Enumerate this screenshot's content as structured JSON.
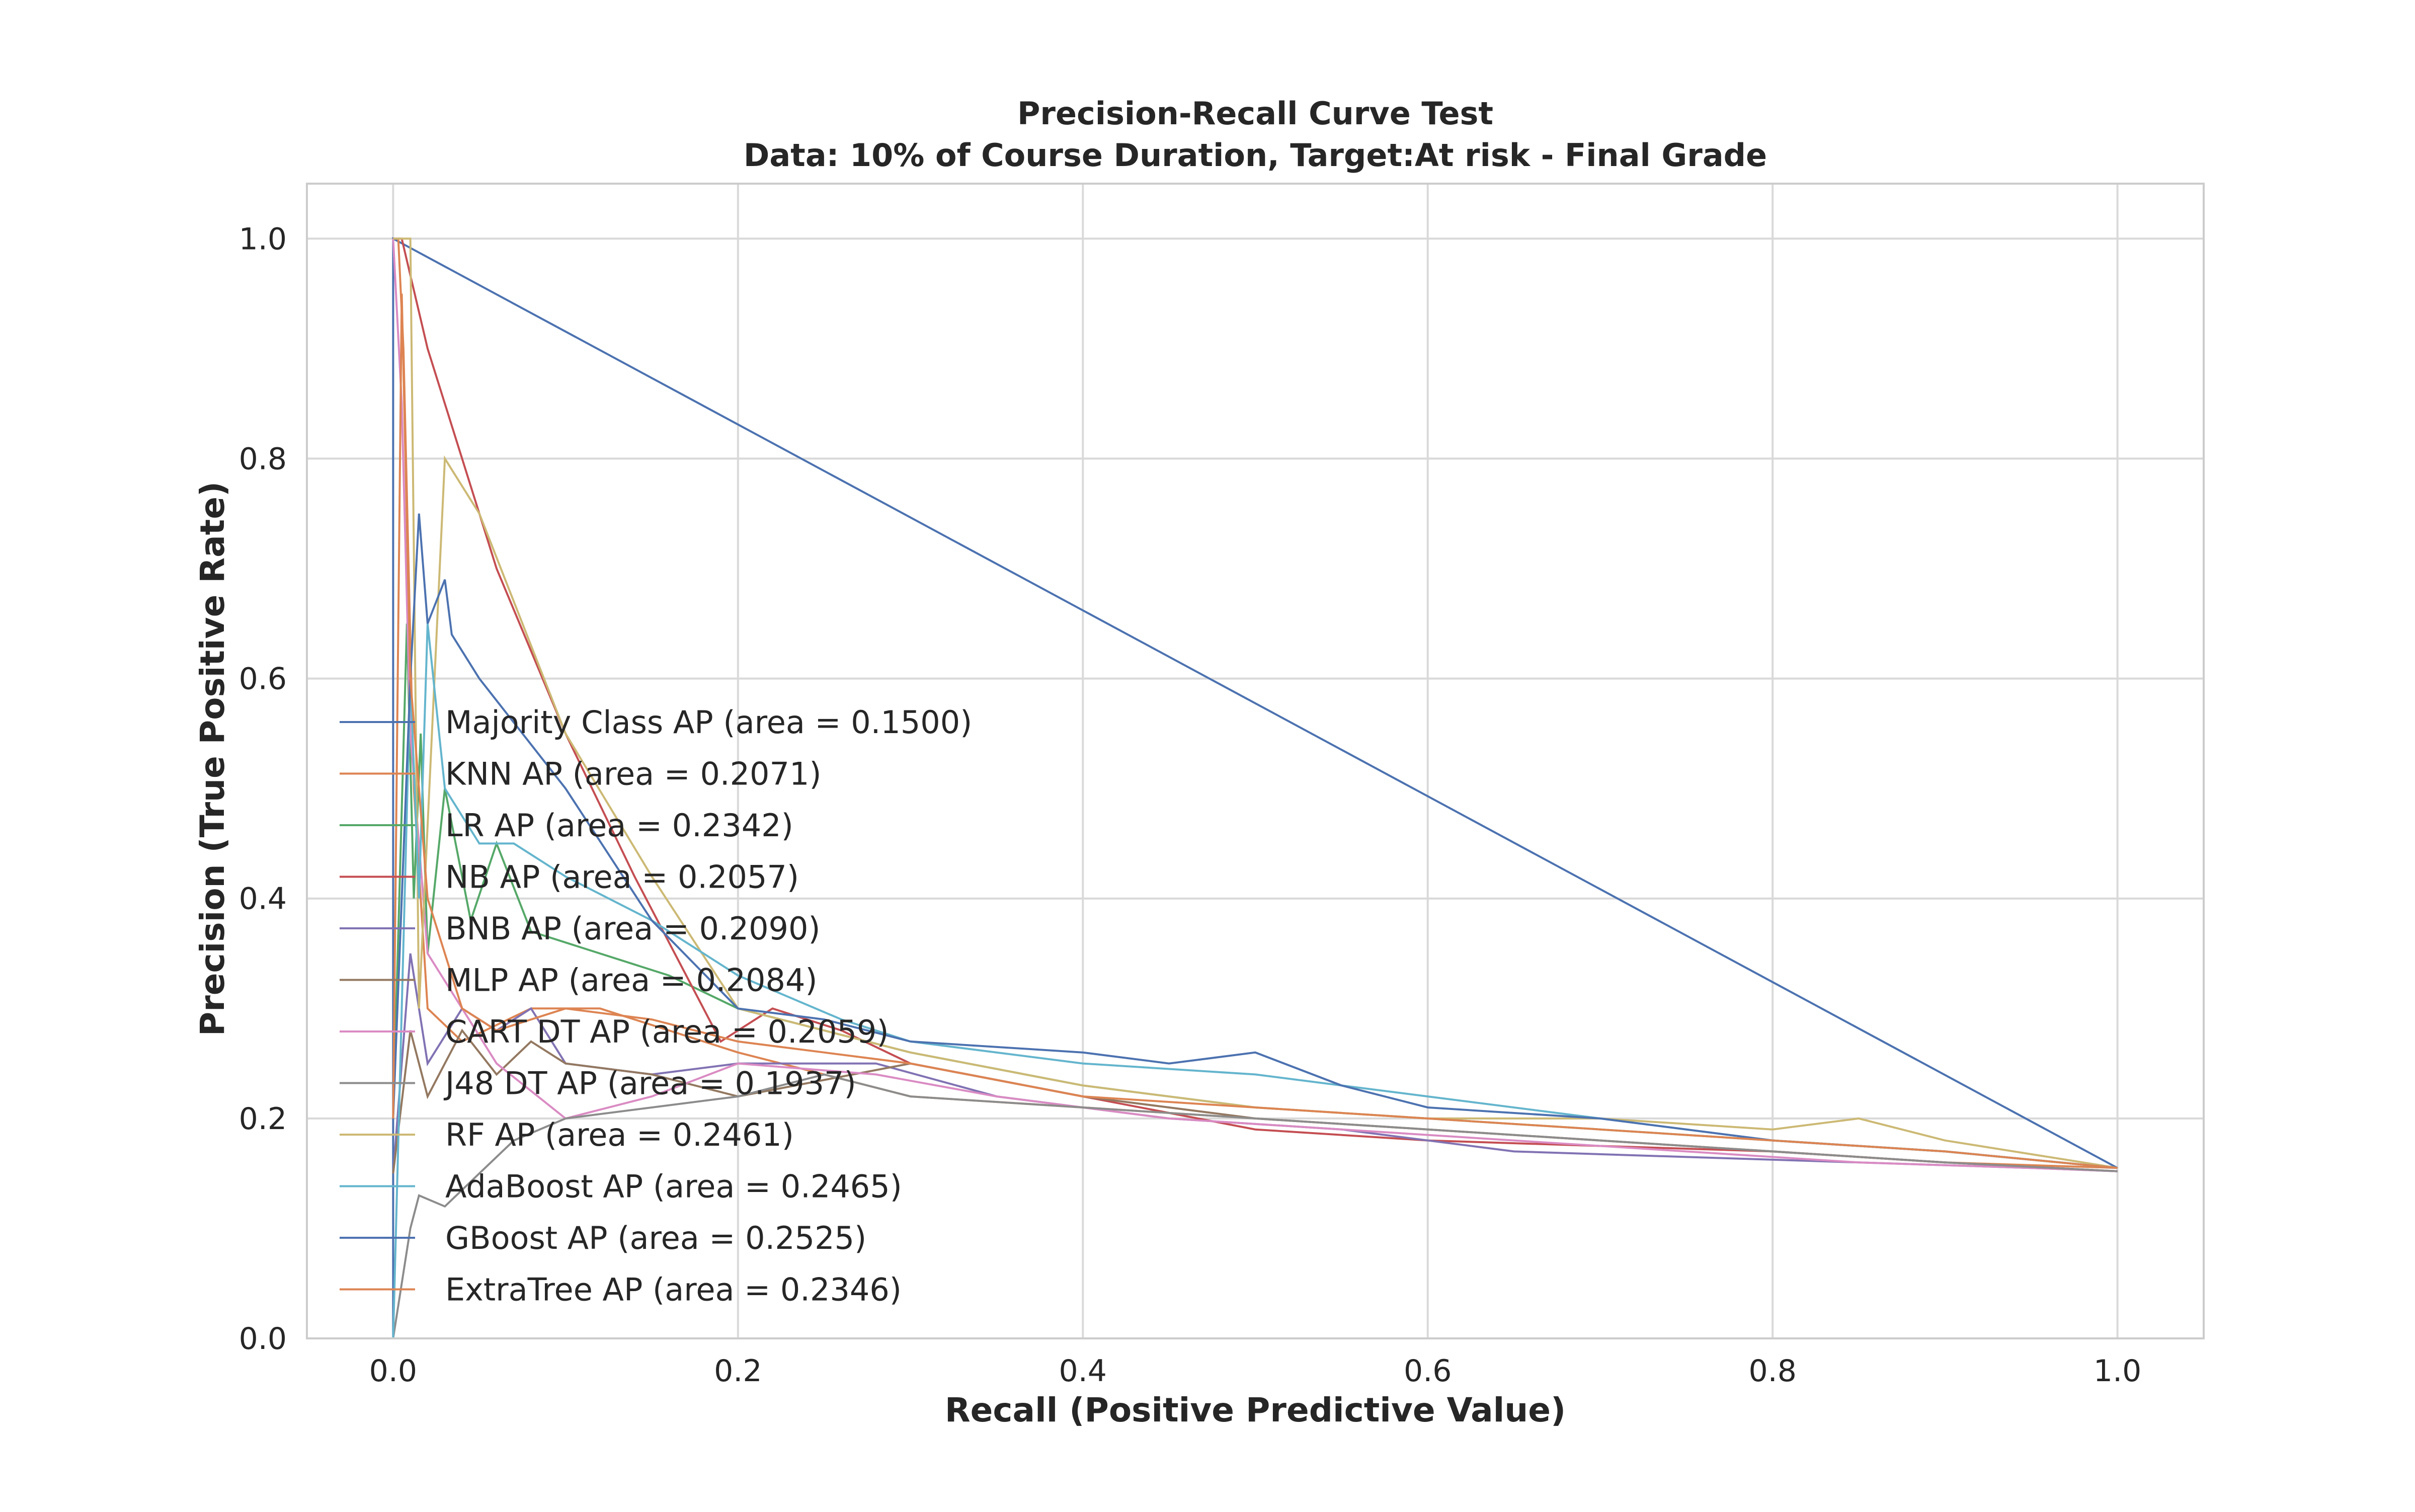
{
  "chart_data": {
    "type": "line",
    "title": "Precision-Recall Curve Test",
    "subtitle": "Data: 10% of Course Duration, Target:At risk - Final Grade",
    "xlabel": "Recall (Positive Predictive Value)",
    "ylabel": "Precision (True Positive Rate)",
    "xlim": [
      -0.05,
      1.05
    ],
    "ylim": [
      0.0,
      1.05
    ],
    "xticks": [
      "0.0",
      "0.2",
      "0.4",
      "0.6",
      "0.8",
      "1.0"
    ],
    "yticks": [
      "0.0",
      "0.2",
      "0.4",
      "0.6",
      "0.8",
      "1.0"
    ],
    "grid": true,
    "legend_position": "center-left",
    "series": [
      {
        "name": "Majority Class AP (area = 0.1500)",
        "color": "#4c72b0",
        "x": [
          0.0,
          0.0,
          1.0
        ],
        "y": [
          0.0,
          1.0,
          0.155
        ]
      },
      {
        "name": "KNN AP (area = 0.2071)",
        "color": "#dd8452",
        "x": [
          0.0,
          0.003,
          0.006,
          0.012,
          0.02,
          0.04,
          0.08,
          0.12,
          0.16,
          0.2,
          0.25,
          0.3,
          0.4,
          0.5,
          0.6,
          0.7,
          0.8,
          0.9,
          1.0
        ],
        "y": [
          1.0,
          1.0,
          0.9,
          0.5,
          0.3,
          0.27,
          0.3,
          0.3,
          0.28,
          0.26,
          0.24,
          0.22,
          0.21,
          0.2,
          0.19,
          0.18,
          0.17,
          0.16,
          0.155
        ]
      },
      {
        "name": "LR AP (area = 0.2342)",
        "color": "#55a868",
        "x": [
          0.0,
          0.008,
          0.012,
          0.016,
          0.02,
          0.03,
          0.045,
          0.06,
          0.08,
          0.12,
          0.16,
          0.2,
          0.25,
          0.3,
          0.4,
          0.5,
          0.6,
          0.7,
          0.8,
          0.9,
          1.0
        ],
        "y": [
          0.2,
          0.65,
          0.4,
          0.55,
          0.35,
          0.5,
          0.38,
          0.45,
          0.37,
          0.35,
          0.33,
          0.3,
          0.28,
          0.26,
          0.23,
          0.21,
          0.2,
          0.19,
          0.18,
          0.17,
          0.155
        ]
      },
      {
        "name": "NB AP (area = 0.2057)",
        "color": "#c44e52",
        "x": [
          0.0,
          0.005,
          0.02,
          0.06,
          0.1,
          0.14,
          0.19,
          0.22,
          0.26,
          0.3,
          0.4,
          0.5,
          0.6,
          0.7,
          0.8,
          0.9,
          1.0
        ],
        "y": [
          1.0,
          1.0,
          0.9,
          0.7,
          0.55,
          0.42,
          0.27,
          0.3,
          0.28,
          0.25,
          0.22,
          0.19,
          0.18,
          0.175,
          0.17,
          0.16,
          0.152
        ]
      },
      {
        "name": "BNB AP (area = 0.2090)",
        "color": "#8172b3",
        "x": [
          0.0,
          0.01,
          0.02,
          0.04,
          0.06,
          0.08,
          0.1,
          0.15,
          0.2,
          0.28,
          0.35,
          0.45,
          0.55,
          0.65,
          0.75,
          0.85,
          0.95,
          1.0
        ],
        "y": [
          0.15,
          0.35,
          0.25,
          0.3,
          0.28,
          0.3,
          0.25,
          0.24,
          0.25,
          0.25,
          0.22,
          0.2,
          0.19,
          0.17,
          0.165,
          0.16,
          0.155,
          0.152
        ]
      },
      {
        "name": "MLP AP (area = 0.2084)",
        "color": "#937860",
        "x": [
          0.0,
          0.01,
          0.02,
          0.04,
          0.06,
          0.08,
          0.1,
          0.15,
          0.2,
          0.3,
          0.4,
          0.5,
          0.6,
          0.7,
          0.8,
          0.9,
          1.0
        ],
        "y": [
          0.15,
          0.28,
          0.22,
          0.28,
          0.24,
          0.27,
          0.25,
          0.24,
          0.22,
          0.25,
          0.22,
          0.2,
          0.19,
          0.18,
          0.17,
          0.16,
          0.152
        ]
      },
      {
        "name": "CART DT AP (area = 0.2059)",
        "color": "#da8bc3",
        "x": [
          0.0,
          0.005,
          0.01,
          0.02,
          0.04,
          0.06,
          0.1,
          0.15,
          0.2,
          0.28,
          0.35,
          0.45,
          0.55,
          0.65,
          0.75,
          0.85,
          0.95,
          1.0
        ],
        "y": [
          1.0,
          0.85,
          0.55,
          0.35,
          0.3,
          0.25,
          0.2,
          0.22,
          0.25,
          0.24,
          0.22,
          0.2,
          0.19,
          0.18,
          0.17,
          0.16,
          0.155,
          0.152
        ]
      },
      {
        "name": "J48 DT AP (area = 0.1937)",
        "color": "#8c8c8c",
        "x": [
          0.0,
          0.01,
          0.015,
          0.03,
          0.05,
          0.07,
          0.1,
          0.15,
          0.2,
          0.25,
          0.3,
          0.4,
          0.5,
          0.6,
          0.7,
          0.8,
          0.9,
          1.0
        ],
        "y": [
          0.0,
          0.1,
          0.13,
          0.12,
          0.15,
          0.18,
          0.2,
          0.21,
          0.22,
          0.24,
          0.22,
          0.21,
          0.2,
          0.19,
          0.18,
          0.17,
          0.16,
          0.152
        ]
      },
      {
        "name": "RF AP (area = 0.2461)",
        "color": "#ccb974",
        "x": [
          0.0,
          0.01,
          0.015,
          0.03,
          0.05,
          0.1,
          0.15,
          0.2,
          0.25,
          0.3,
          0.4,
          0.5,
          0.6,
          0.7,
          0.8,
          0.85,
          0.9,
          1.0
        ],
        "y": [
          1.0,
          1.0,
          0.3,
          0.8,
          0.75,
          0.55,
          0.42,
          0.3,
          0.28,
          0.26,
          0.23,
          0.21,
          0.2,
          0.2,
          0.19,
          0.2,
          0.18,
          0.155
        ]
      },
      {
        "name": "AdaBoost AP (area = 0.2465)",
        "color": "#64b5cd",
        "x": [
          0.0,
          0.01,
          0.015,
          0.02,
          0.03,
          0.05,
          0.07,
          0.1,
          0.15,
          0.2,
          0.26,
          0.3,
          0.4,
          0.5,
          0.6,
          0.7,
          0.8,
          0.9,
          1.0
        ],
        "y": [
          0.0,
          0.6,
          0.4,
          0.65,
          0.5,
          0.45,
          0.45,
          0.42,
          0.38,
          0.33,
          0.29,
          0.27,
          0.25,
          0.24,
          0.22,
          0.2,
          0.18,
          0.17,
          0.155
        ]
      },
      {
        "name": "GBoost AP (area = 0.2525)",
        "color": "#4c72b0",
        "x": [
          0.0,
          0.01,
          0.015,
          0.02,
          0.03,
          0.034,
          0.05,
          0.1,
          0.15,
          0.2,
          0.25,
          0.3,
          0.4,
          0.45,
          0.5,
          0.55,
          0.6,
          0.7,
          0.8,
          0.9,
          1.0
        ],
        "y": [
          0.2,
          0.6,
          0.75,
          0.65,
          0.69,
          0.64,
          0.6,
          0.5,
          0.38,
          0.3,
          0.29,
          0.27,
          0.26,
          0.25,
          0.26,
          0.23,
          0.21,
          0.2,
          0.18,
          0.17,
          0.155
        ]
      },
      {
        "name": "ExtraTree AP (area = 0.2346)",
        "color": "#dd8452",
        "x": [
          0.0,
          0.005,
          0.01,
          0.02,
          0.04,
          0.06,
          0.1,
          0.15,
          0.2,
          0.25,
          0.3,
          0.4,
          0.5,
          0.6,
          0.7,
          0.8,
          0.9,
          1.0
        ],
        "y": [
          0.2,
          0.95,
          0.6,
          0.4,
          0.3,
          0.28,
          0.3,
          0.29,
          0.27,
          0.26,
          0.25,
          0.22,
          0.21,
          0.2,
          0.19,
          0.18,
          0.17,
          0.155
        ]
      }
    ]
  }
}
